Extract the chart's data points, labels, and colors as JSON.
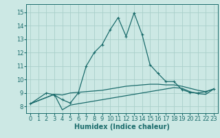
{
  "background_color": "#cce8e4",
  "grid_color": "#aacfca",
  "line_color": "#1a6b6b",
  "xlabel": "Humidex (Indice chaleur)",
  "xlabel_fontsize": 7,
  "tick_fontsize": 6,
  "xlim": [
    -0.5,
    23.5
  ],
  "ylim": [
    7.5,
    15.6
  ],
  "yticks": [
    8,
    9,
    10,
    11,
    12,
    13,
    14,
    15
  ],
  "xticks": [
    0,
    1,
    2,
    3,
    4,
    5,
    6,
    7,
    8,
    9,
    10,
    11,
    12,
    13,
    14,
    15,
    16,
    17,
    18,
    19,
    20,
    21,
    22,
    23
  ],
  "curve1_x": [
    0,
    2,
    3,
    4,
    5,
    6,
    7,
    8,
    9,
    10,
    11,
    12,
    13,
    14,
    15,
    16,
    17,
    18,
    19,
    20,
    21,
    22,
    23
  ],
  "curve1_y": [
    8.2,
    9.0,
    8.85,
    8.5,
    8.25,
    9.0,
    11.0,
    12.0,
    12.6,
    13.7,
    14.6,
    13.2,
    14.95,
    13.35,
    11.1,
    10.45,
    9.85,
    9.85,
    9.25,
    9.05,
    9.0,
    9.1,
    9.3
  ],
  "curve2_x": [
    0,
    3,
    4,
    5,
    6,
    7,
    8,
    9,
    10,
    11,
    12,
    13,
    14,
    15,
    16,
    17,
    18,
    19,
    20,
    21,
    22,
    23
  ],
  "curve2_y": [
    8.2,
    8.9,
    8.85,
    9.0,
    9.05,
    9.1,
    9.15,
    9.2,
    9.3,
    9.4,
    9.5,
    9.55,
    9.6,
    9.65,
    9.65,
    9.6,
    9.6,
    9.5,
    9.35,
    9.2,
    9.1,
    9.3
  ],
  "curve3_x": [
    0,
    3,
    4,
    5,
    6,
    7,
    8,
    9,
    10,
    11,
    12,
    13,
    14,
    15,
    16,
    17,
    18,
    19,
    20,
    21,
    22,
    23
  ],
  "curve3_y": [
    8.2,
    8.9,
    7.75,
    8.1,
    8.2,
    8.3,
    8.4,
    8.5,
    8.6,
    8.7,
    8.8,
    8.9,
    9.0,
    9.1,
    9.2,
    9.3,
    9.4,
    9.35,
    9.1,
    8.95,
    8.9,
    9.3
  ]
}
